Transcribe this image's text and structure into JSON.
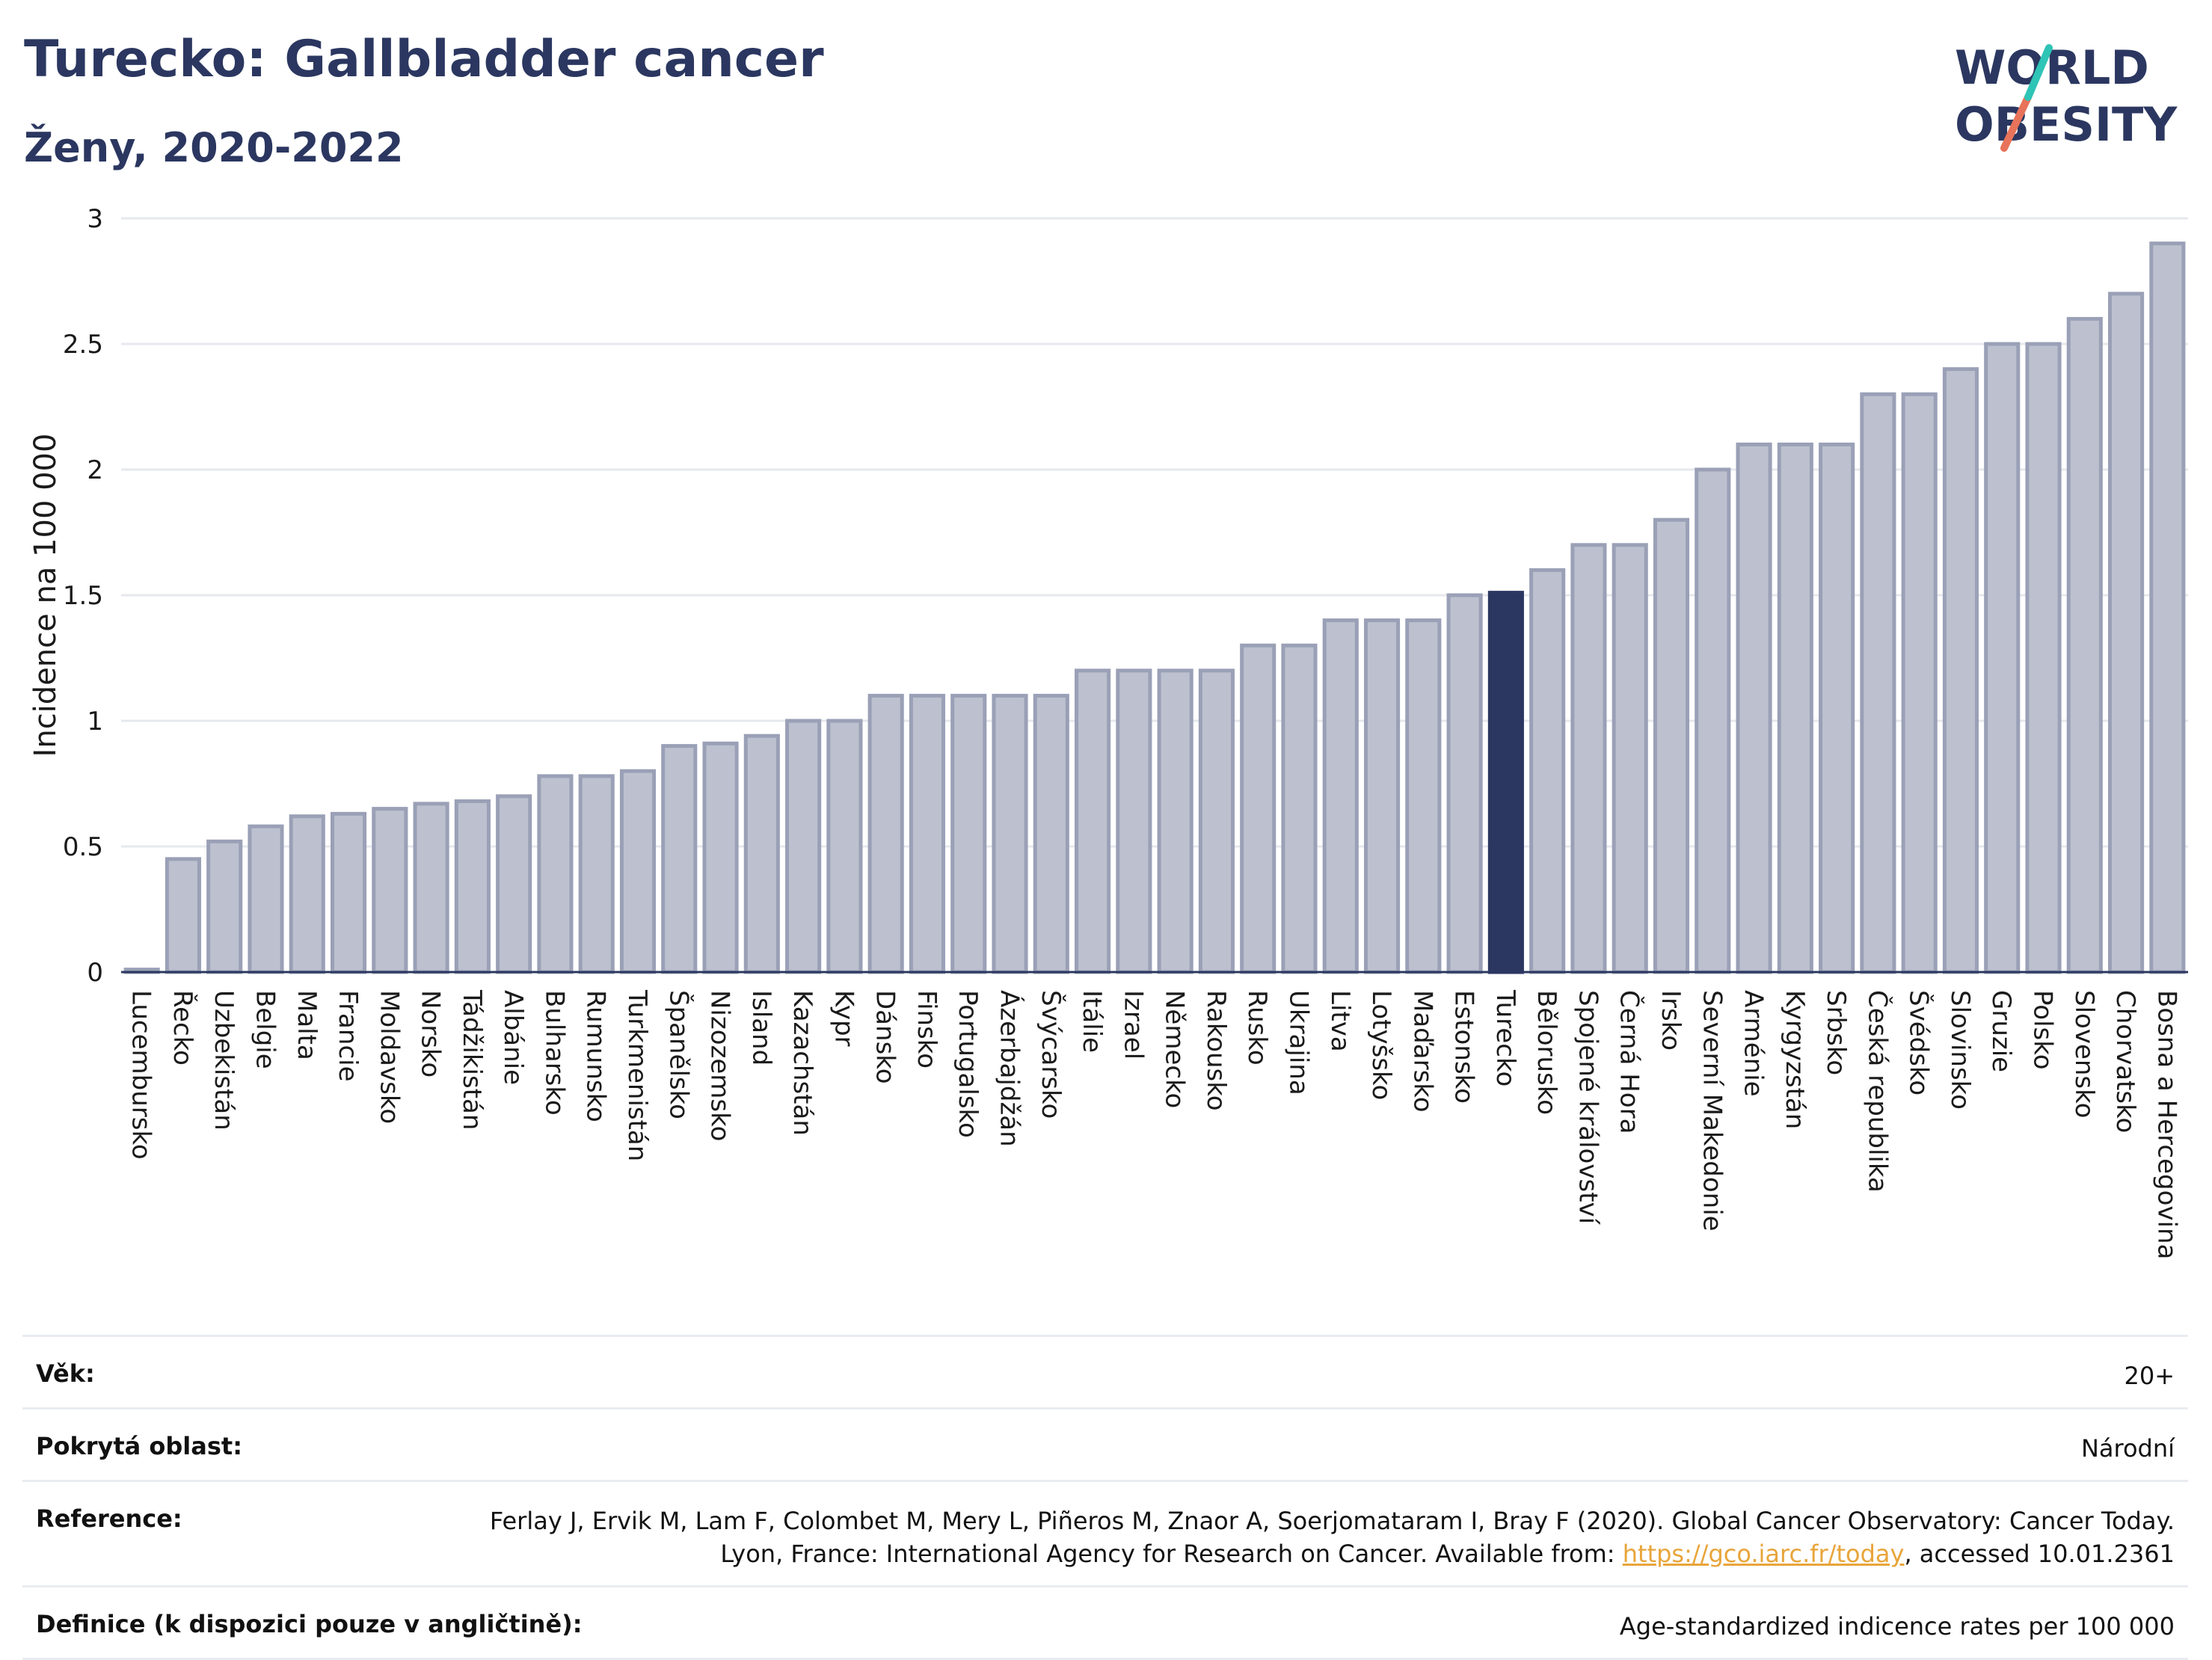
{
  "header": {
    "title": "Turecko: Gallbladder cancer",
    "subtitle": "Ženy, 2020-2022"
  },
  "logo": {
    "line1": "WORLD",
    "line2": "OBESITY",
    "accent_teal": "#2ec4b6",
    "accent_coral": "#e8735a"
  },
  "colors": {
    "bar": "#bdc1cf",
    "bar_stroke": "#9aa0b6",
    "highlight": "#2b3760",
    "grid": "#e6e8ee",
    "title": "#2b3760",
    "link": "#e8a53a"
  },
  "chart_data": {
    "type": "bar",
    "title": "Turecko: Gallbladder cancer",
    "subtitle": "Ženy, 2020-2022",
    "xlabel": "",
    "ylabel": "Incidence na 100 000",
    "ylim": [
      0,
      3
    ],
    "yticks": [
      0,
      0.5,
      1,
      1.5,
      2,
      2.5,
      3
    ],
    "grid": true,
    "highlight": "Turecko",
    "categories": [
      "Lucembursko",
      "Řecko",
      "Uzbekistán",
      "Belgie",
      "Malta",
      "Francie",
      "Moldavsko",
      "Norsko",
      "Tádžikistán",
      "Albánie",
      "Bulharsko",
      "Rumunsko",
      "Turkmenistán",
      "Španělsko",
      "Nizozemsko",
      "Island",
      "Kazachstán",
      "Kypr",
      "Dánsko",
      "Finsko",
      "Portugalsko",
      "Ázerbajdžán",
      "Švýcarsko",
      "Itálie",
      "Izrael",
      "Německo",
      "Rakousko",
      "Rusko",
      "Ukrajina",
      "Litva",
      "Lotyšsko",
      "Maďarsko",
      "Estonsko",
      "Turecko",
      "Bělorusko",
      "Spojené království",
      "Černá Hora",
      "Irsko",
      "Severní Makedonie",
      "Arménie",
      "Kyrgyzstán",
      "Srbsko",
      "Česká republika",
      "Švédsko",
      "Slovinsko",
      "Gruzie",
      "Polsko",
      "Slovensko",
      "Chorvatsko",
      "Bosna a Hercegovina"
    ],
    "values": [
      0.01,
      0.45,
      0.52,
      0.58,
      0.62,
      0.63,
      0.65,
      0.67,
      0.68,
      0.7,
      0.78,
      0.78,
      0.8,
      0.9,
      0.91,
      0.94,
      1.0,
      1.0,
      1.1,
      1.1,
      1.1,
      1.1,
      1.1,
      1.2,
      1.2,
      1.2,
      1.2,
      1.3,
      1.3,
      1.4,
      1.4,
      1.4,
      1.5,
      1.51,
      1.6,
      1.7,
      1.7,
      1.8,
      2.0,
      2.1,
      2.1,
      2.1,
      2.3,
      2.3,
      2.4,
      2.5,
      2.5,
      2.6,
      2.7,
      2.9
    ]
  },
  "info": {
    "age_label": "Věk:",
    "age_value": "20+",
    "coverage_label": "Pokrytá oblast:",
    "coverage_value": "Národní",
    "reference_label": "Reference:",
    "reference_text_1": "Ferlay J, Ervik M, Lam F, Colombet M, Mery L, Piñeros M, Znaor A, Soerjomataram I, Bray F (2020). Global Cancer Observatory: Cancer Today. Lyon, France: International Agency for Research on Cancer. Available from: ",
    "reference_link": "https://gco.iarc.fr/today",
    "reference_text_2": ", accessed 10.01.2361",
    "definition_label": "Definice (k dispozici pouze v angličtině):",
    "definition_value": "Age-standardized indicence rates per 100 000"
  }
}
